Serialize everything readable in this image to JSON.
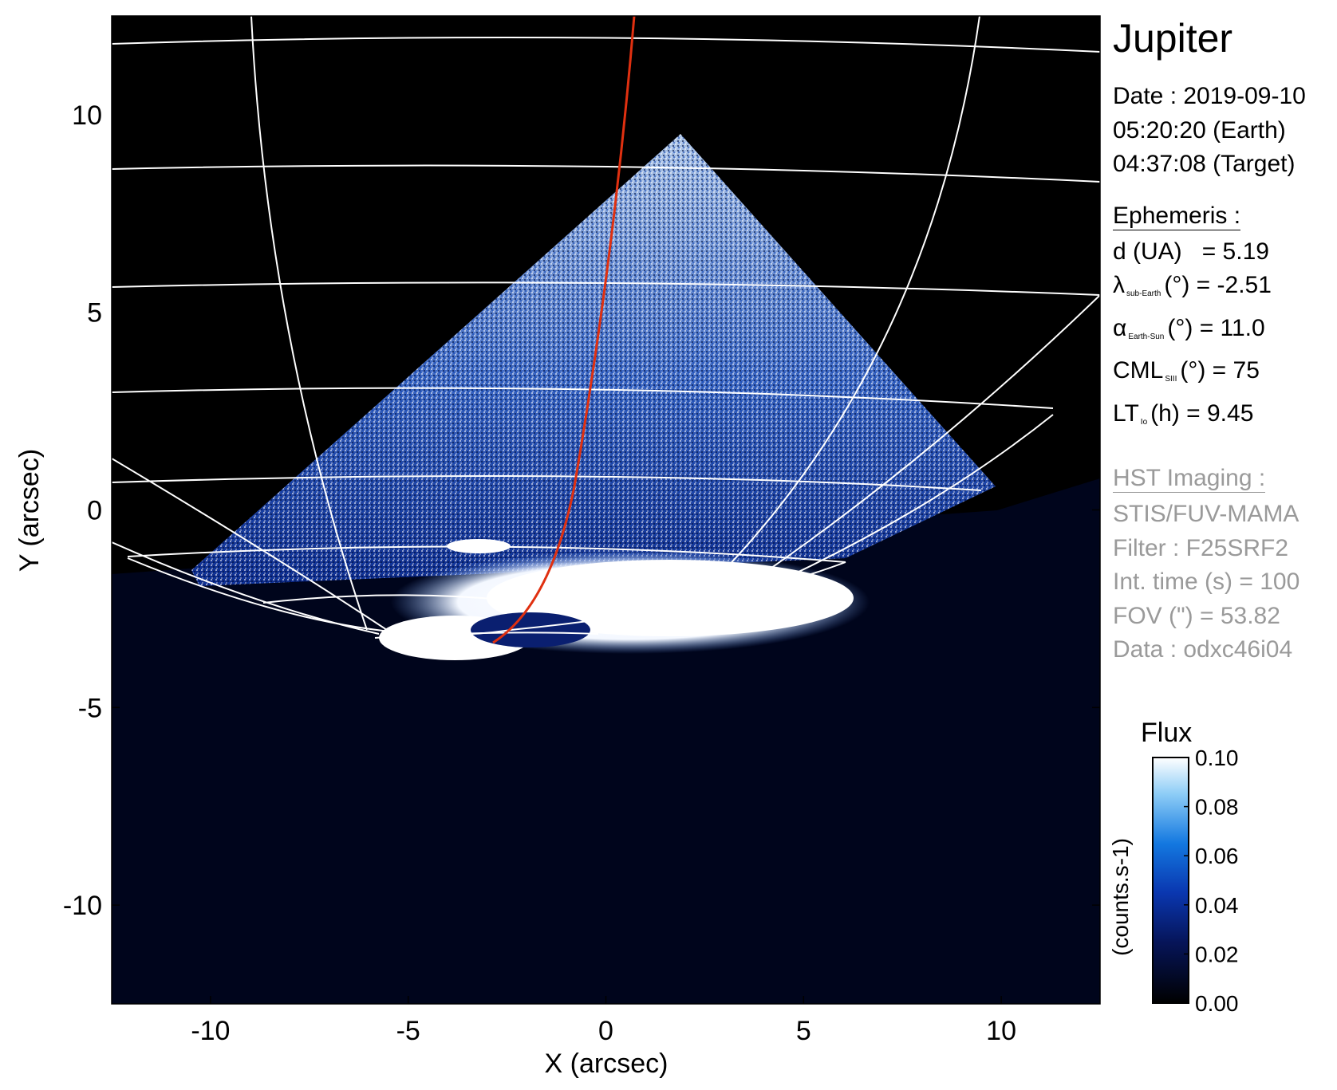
{
  "chart_data": {
    "type": "heatmap",
    "title": "Jupiter",
    "xlabel": "X (arcsec)",
    "ylabel": "Y (arcsec)",
    "xlim": [
      -12.5,
      12.5
    ],
    "ylim": [
      -12.5,
      12.5
    ],
    "xticks": [
      -10,
      -5,
      0,
      5,
      10
    ],
    "yticks": [
      10,
      5,
      0,
      -5,
      -10
    ],
    "colorbar": {
      "label": "Flux",
      "unit": "(counts.s-1)",
      "range": [
        0.0,
        0.1
      ],
      "ticks": [
        "0.00",
        "0.02",
        "0.04",
        "0.06",
        "0.08",
        "0.10"
      ]
    },
    "colors": {
      "low": "#000000",
      "mid": "#0a2a8a",
      "high": "#ffffff",
      "footpath": "#e03010",
      "grid": "#ffffff"
    }
  },
  "info": {
    "date_lines": [
      "Date : 2019-09-10",
      "05:20:20 (Earth)",
      "04:37:08 (Target)"
    ],
    "ephemeris_header": "Ephemeris :",
    "ephemeris": [
      {
        "name": "d (UA)",
        "sub": "",
        "value": "= 5.19"
      },
      {
        "name": "λ",
        "sub": "sub-Earth",
        "value": "(°) = -2.51"
      },
      {
        "name": "α",
        "sub": "Earth-Sun",
        "value": "(°) = 11.0"
      },
      {
        "name": "CML",
        "sub": "SIII",
        "value": "(°) = 75"
      },
      {
        "name": "LT",
        "sub": "Io",
        "value": "(h) = 9.45"
      }
    ],
    "hst_header": "HST Imaging :",
    "hst": [
      "STIS/FUV-MAMA",
      "Filter : F25SRF2",
      "Int. time (s) = 100",
      "FOV (\") = 53.82",
      "Data : odxc46i04"
    ]
  }
}
